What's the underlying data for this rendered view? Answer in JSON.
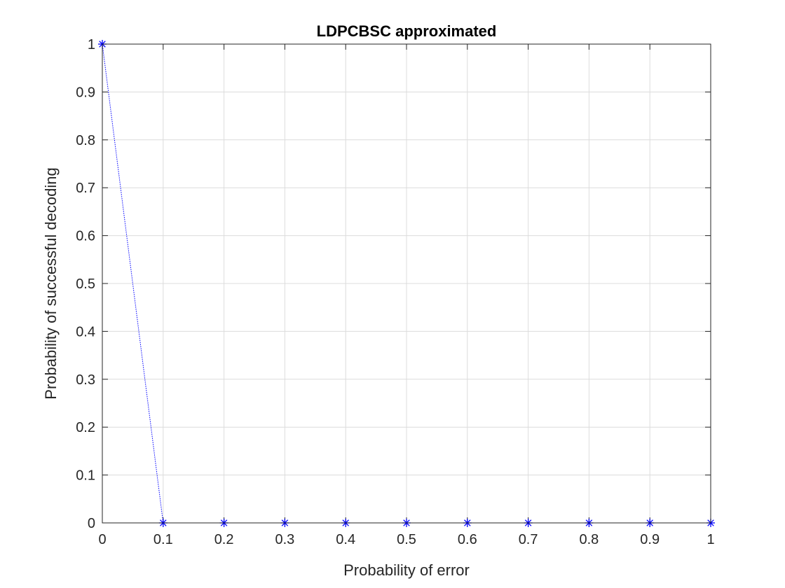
{
  "chart_data": {
    "type": "line",
    "title": "LDPCBSC approximated",
    "xlabel": "Probability of error",
    "ylabel": "Probability of successful decoding",
    "xlim": [
      0,
      1
    ],
    "ylim": [
      0,
      1
    ],
    "xticks": [
      "0",
      "0.1",
      "0.2",
      "0.3",
      "0.4",
      "0.5",
      "0.6",
      "0.7",
      "0.8",
      "0.9",
      "1"
    ],
    "yticks": [
      "0",
      "0.1",
      "0.2",
      "0.3",
      "0.4",
      "0.5",
      "0.6",
      "0.7",
      "0.8",
      "0.9",
      "1"
    ],
    "grid": true,
    "line_style": "dotted",
    "marker": "asterisk",
    "line_color": "#0000ff",
    "series": [
      {
        "x": [
          0,
          0.1,
          0.2,
          0.3,
          0.4,
          0.5,
          0.6,
          0.7,
          0.8,
          0.9,
          1.0
        ],
        "y": [
          1,
          0,
          0,
          0,
          0,
          0,
          0,
          0,
          0,
          0,
          0
        ]
      }
    ]
  }
}
